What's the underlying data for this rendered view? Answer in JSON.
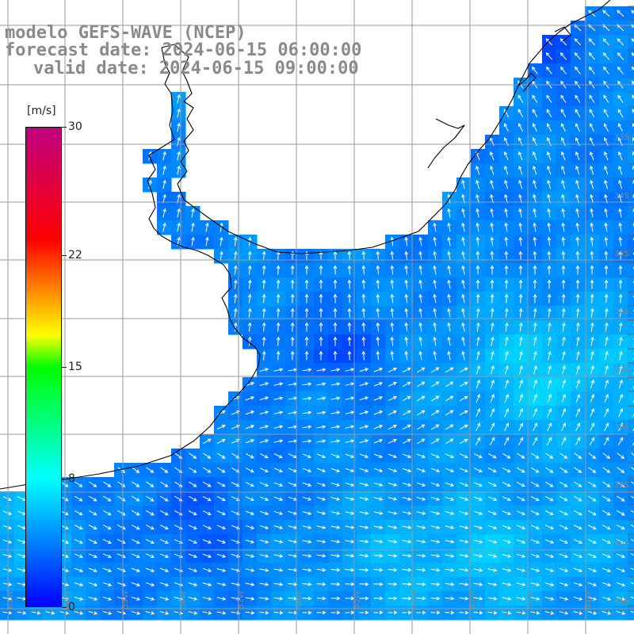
{
  "title": {
    "model": "modelo GEFS-WAVE (NCEP)",
    "forecast": "forecast date: 2024-06-15 06:00:00",
    "valid": "valid date: 2024-06-15 09:00:00"
  },
  "colorbar": {
    "unit": "[m/s]",
    "min": 0,
    "max": 30,
    "ticks": [
      {
        "value": 30,
        "label": "30"
      },
      {
        "value": 22,
        "label": "22"
      },
      {
        "value": 15,
        "label": "15"
      },
      {
        "value": 8,
        "label": "8"
      },
      {
        "value": 0,
        "label": "0"
      }
    ],
    "stops": [
      {
        "value": 0,
        "color": "#0000ff"
      },
      {
        "value": 8,
        "color": "#00ffff"
      },
      {
        "value": 15,
        "color": "#00ff00"
      },
      {
        "value": 17,
        "color": "#ffff00"
      },
      {
        "value": 23,
        "color": "#ff0000"
      },
      {
        "value": 30,
        "color": "#c00080"
      }
    ]
  },
  "map": {
    "lat_labels": [
      "33S",
      "34S",
      "35S",
      "36S",
      "37S",
      "38S",
      "39S",
      "40S",
      "41S"
    ],
    "lon_labels": [
      "61W",
      "60W",
      "59W",
      "58W",
      "57W",
      "56W",
      "55W",
      "54W",
      "53W",
      "52W",
      "51W"
    ],
    "colors": {
      "land": "#ffffff",
      "grid": "#9a9a9a",
      "coast": "#000000",
      "arrow": "#ffffff"
    }
  }
}
